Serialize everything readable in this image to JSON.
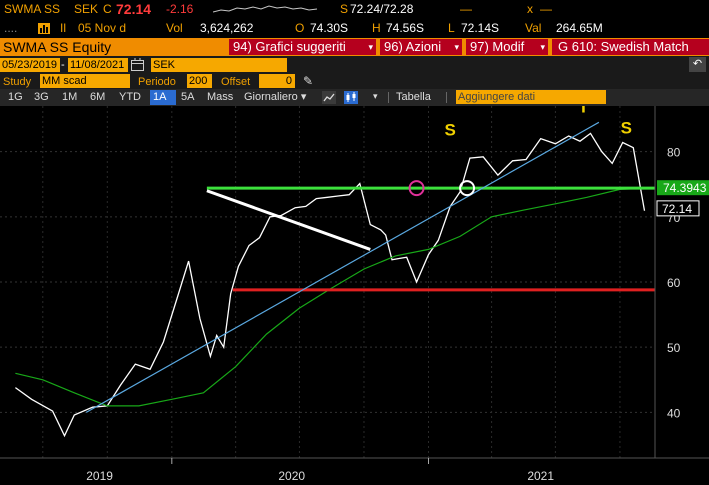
{
  "quote": {
    "ticker": "SWMA SS",
    "currency": "SEK",
    "c_flag": "C",
    "last": "72.14",
    "change": "-2.16",
    "sep": "S",
    "bid_ask": "72.24/72.28",
    "x_flag": "x",
    "dots": "....",
    "il": "Il",
    "date": "05 Nov d",
    "vol_label": "Vol",
    "volume": "3,624,262",
    "o_label": "O",
    "open": "74.30S",
    "h_label": "H",
    "high": "74.56S",
    "l_label": "L",
    "low": "72.14S",
    "val_label": "Val",
    "value": "264.65M"
  },
  "command": {
    "security": "SWMA SS Equity",
    "menu1": "94) Grafici suggeriti",
    "menu2": "96) Azioni",
    "menu3": "97) Modif",
    "title": "G 610: Swedish Match"
  },
  "params": {
    "start_date": "05/23/2019",
    "end_date": "11/08/2021",
    "currency": "SEK",
    "study_label": "Study",
    "study_value": "MM scad",
    "period_label": "Periodo",
    "period_value": "200",
    "offset_label": "Offset",
    "offset_value": "0"
  },
  "toolbar": {
    "ranges": [
      "1G",
      "3G",
      "1M",
      "6M",
      "YTD",
      "1A",
      "5A",
      "Mass"
    ],
    "active_range": "1A",
    "frequency": "Giornaliero",
    "table_label": "Tabella",
    "add_data_placeholder": "Aggiungere dati"
  },
  "chart_data": {
    "type": "line",
    "x_labels": [
      "2019",
      "2020",
      "2021"
    ],
    "y_ticks": [
      40,
      50,
      60,
      70,
      80
    ],
    "ylim": [
      33,
      87
    ],
    "last_price_tag": "72.14",
    "ma_tag": "74.3943",
    "series": [
      {
        "name": "",
        "color": "#ffffff",
        "x": [
          "2019-05-23",
          "2019-06-15",
          "2019-07-15",
          "2019-08-01",
          "2019-08-15",
          "2019-09-10",
          "2019-10-01",
          "2019-10-20",
          "2019-11-10",
          "2019-12-01",
          "2019-12-20",
          "2020-01-10",
          "2020-01-25",
          "2020-02-10",
          "2020-02-25",
          "2020-03-05",
          "2020-03-15",
          "2020-03-25",
          "2020-04-05",
          "2020-04-20",
          "2020-05-05",
          "2020-05-20",
          "2020-06-05",
          "2020-06-25",
          "2020-07-10",
          "2020-07-25",
          "2020-08-10",
          "2020-08-25",
          "2020-09-10",
          "2020-09-25",
          "2020-10-10",
          "2020-10-25",
          "2020-11-01",
          "2020-11-10",
          "2020-11-20",
          "2020-12-01",
          "2020-12-15",
          "2021-01-01",
          "2021-01-15",
          "2021-02-01",
          "2021-02-15",
          "2021-03-01",
          "2021-03-20",
          "2021-04-10",
          "2021-05-01",
          "2021-05-20",
          "2021-06-10",
          "2021-07-01",
          "2021-07-20",
          "2021-08-05",
          "2021-08-20",
          "2021-09-05",
          "2021-09-20",
          "2021-10-05",
          "2021-10-20",
          "2021-11-05"
        ],
        "y": [
          45,
          42,
          39,
          37,
          39,
          42,
          41,
          43,
          48,
          46,
          52,
          58,
          62,
          55,
          48,
          53,
          50,
          57,
          63,
          65,
          68,
          70,
          69,
          72,
          71,
          74,
          73,
          72,
          74,
          74.5,
          70,
          68,
          66,
          64,
          63,
          65,
          60,
          63,
          67,
          71,
          75,
          79,
          78,
          77,
          78,
          80,
          82,
          80,
          83,
          81,
          84,
          80,
          77,
          82,
          80,
          72.14
        ]
      },
      {
        "name": "",
        "color": "#18a818",
        "x": [
          "2019-05-23",
          "2019-07-01",
          "2019-08-15",
          "2019-10-01",
          "2019-11-15",
          "2020-01-01",
          "2020-02-15",
          "2020-04-01",
          "2020-05-15",
          "2020-07-01",
          "2020-08-15",
          "2020-10-01",
          "2020-11-15",
          "2021-01-01",
          "2021-02-15",
          "2021-04-01",
          "2021-05-15",
          "2021-07-01",
          "2021-08-15",
          "2021-10-01",
          "2021-11-05"
        ],
        "y": [
          46,
          45,
          43,
          41,
          41,
          42,
          43,
          47,
          52,
          56,
          59,
          62,
          64,
          65,
          67,
          70,
          71,
          72,
          73,
          74.2,
          74.39
        ]
      }
    ]
  }
}
